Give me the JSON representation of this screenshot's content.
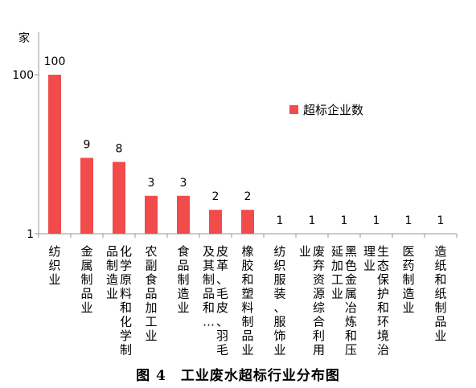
{
  "chart_data": {
    "type": "bar",
    "ylabel": "家",
    "yscale": "log",
    "ylim": [
      1,
      100
    ],
    "yticks": [
      "1",
      "100"
    ],
    "grid": false,
    "legend_position": "right",
    "series": [
      {
        "name": "超标企业数",
        "color": "#f24b4b",
        "values": [
          100,
          9,
          8,
          3,
          3,
          2,
          2,
          1,
          1,
          1,
          1,
          1,
          1
        ]
      }
    ],
    "categories": [
      "纺织业",
      "金属制品业",
      "化学原料和化学制品制造业",
      "农副食品加工业",
      "食品制造业",
      "皮革、毛皮、羽毛及其制品和…",
      "橡胶和塑料制品业",
      "纺织服装、服饰业",
      "废弃资源综合利用业",
      "黑色金属冶炼和压延加工业",
      "生态保护和环境治理业",
      "医药制造业",
      "造纸和纸制品业"
    ]
  },
  "caption": "图 4　工业废水超标行业分布图"
}
